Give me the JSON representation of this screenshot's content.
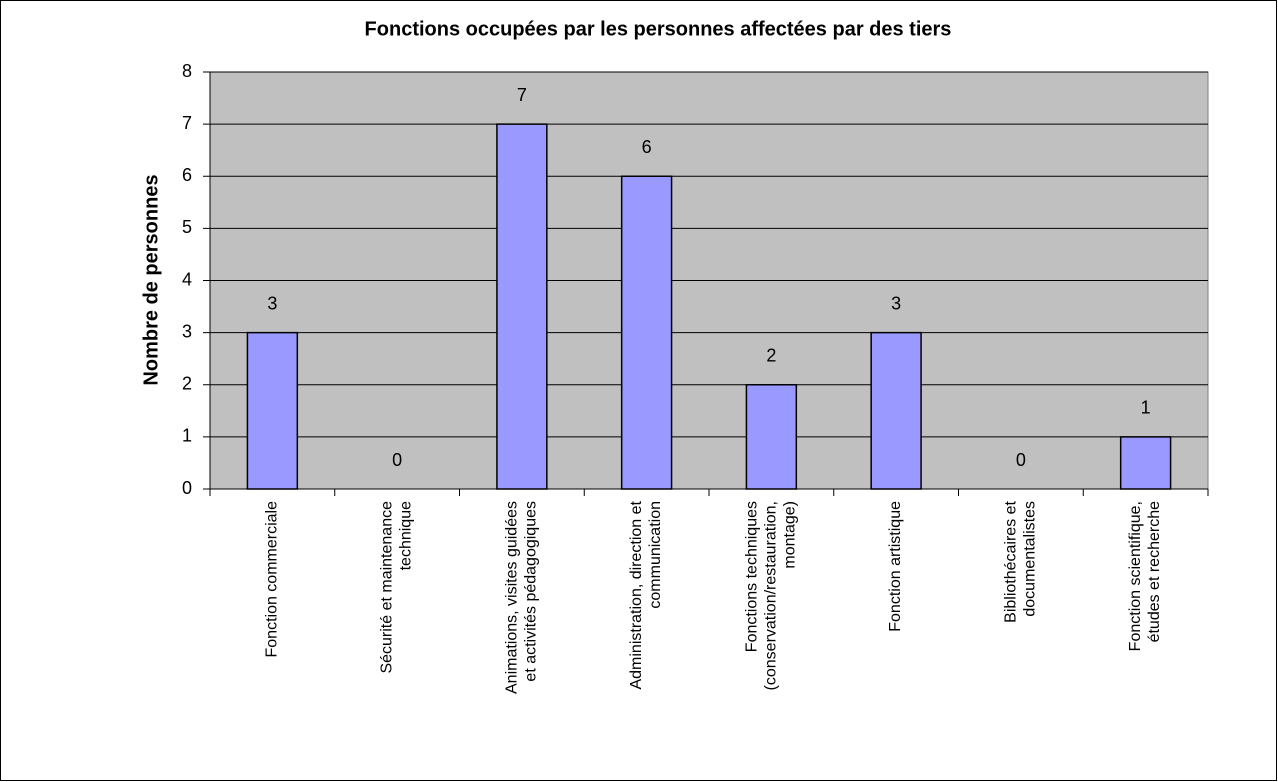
{
  "chart_data": {
    "type": "bar",
    "title": "Fonctions occupées par les personnes  affectées par des tiers",
    "ylabel": "Nombre de personnes",
    "categories": [
      "Fonction commerciale",
      "Sécurité et maintenance\ntechnique",
      "Animations, visites guidées\net activités pédagogiques",
      "Administration, direction et\ncommunication",
      "Fonctions techniques\n(conservation/restauration,\nmontage)",
      "Fonction artistique",
      "Bibliothécaires et\ndocumentalistes",
      "Fonction scientifique,\nétudes et recherche"
    ],
    "values": [
      3,
      0,
      7,
      6,
      2,
      3,
      0,
      1
    ],
    "color": "#9999ff",
    "ylim": [
      0,
      8
    ],
    "yticks": [
      0,
      1,
      2,
      3,
      4,
      5,
      6,
      7,
      8
    ],
    "grid": true
  }
}
